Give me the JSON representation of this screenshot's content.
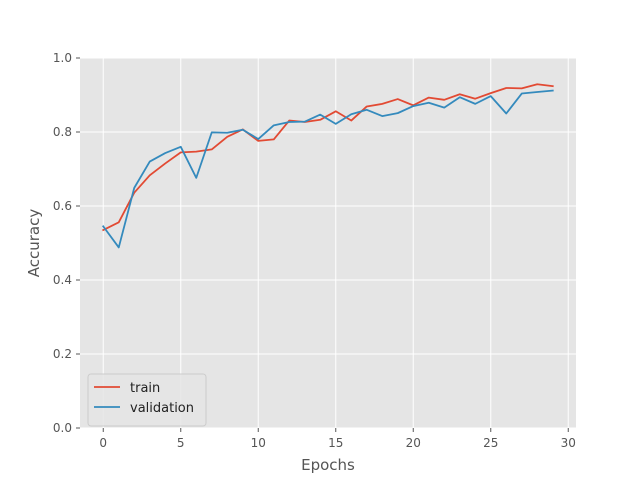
{
  "chart_data": {
    "type": "line",
    "title": "",
    "xlabel": "Epochs",
    "ylabel": "Accuracy",
    "xlim": [
      -1.5,
      30.5
    ],
    "ylim": [
      0.0,
      1.0
    ],
    "x_ticks": [
      0,
      5,
      10,
      15,
      20,
      25,
      30
    ],
    "y_ticks": [
      0.0,
      0.2,
      0.4,
      0.6,
      0.8,
      1.0
    ],
    "x_tick_labels": [
      "0",
      "5",
      "10",
      "15",
      "20",
      "25",
      "30"
    ],
    "y_tick_labels": [
      "0.0",
      "0.2",
      "0.4",
      "0.6",
      "0.8",
      "1.0"
    ],
    "grid": true,
    "legend_position": "lower-left",
    "x": [
      0,
      1,
      2,
      3,
      4,
      5,
      6,
      7,
      8,
      9,
      10,
      11,
      12,
      13,
      14,
      15,
      16,
      17,
      18,
      19,
      20,
      21,
      22,
      23,
      24,
      25,
      26,
      27,
      28,
      29
    ],
    "series": [
      {
        "name": "train",
        "color": "#E24A33",
        "values": [
          0.535,
          0.556,
          0.636,
          0.683,
          0.715,
          0.745,
          0.747,
          0.753,
          0.787,
          0.807,
          0.776,
          0.78,
          0.831,
          0.827,
          0.833,
          0.856,
          0.831,
          0.869,
          0.876,
          0.889,
          0.872,
          0.893,
          0.887,
          0.902,
          0.89,
          0.905,
          0.919,
          0.918,
          0.929,
          0.924
        ]
      },
      {
        "name": "validation",
        "color": "#348ABD",
        "values": [
          0.545,
          0.488,
          0.649,
          0.72,
          0.743,
          0.76,
          0.676,
          0.799,
          0.798,
          0.806,
          0.781,
          0.818,
          0.827,
          0.828,
          0.847,
          0.822,
          0.848,
          0.86,
          0.843,
          0.851,
          0.87,
          0.879,
          0.866,
          0.894,
          0.876,
          0.897,
          0.85,
          0.904,
          0.908,
          0.912
        ]
      }
    ]
  },
  "colors": {
    "figure_bg": "#ffffff",
    "axes_bg": "#E5E5E5",
    "grid": "#ffffff",
    "tick_text": "#555555",
    "label_text": "#555555",
    "legend_border": "#CCCCCC"
  }
}
